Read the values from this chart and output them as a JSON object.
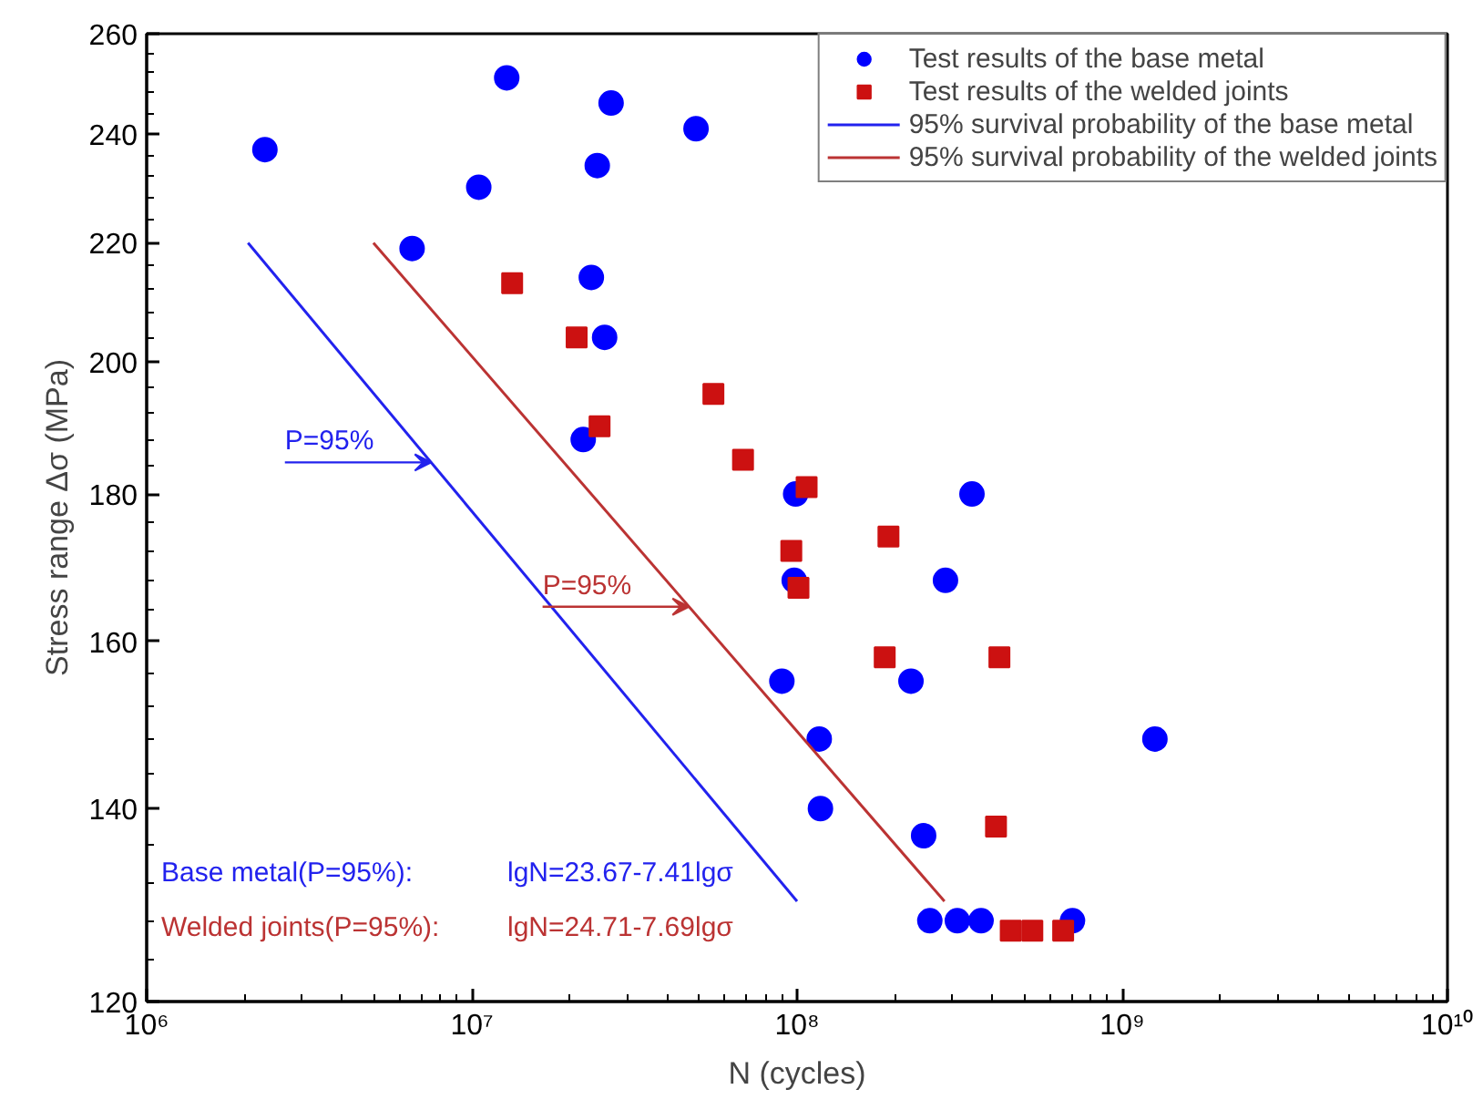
{
  "chart_data": {
    "type": "scatter",
    "xlabel": "N (cycles)",
    "ylabel": "Stress range Δσ (MPa)",
    "log": "xy",
    "grid": false,
    "legend": "top right",
    "xlim": [
      1000000,
      10000000000
    ],
    "ylim": [
      120,
      260
    ],
    "xticks": [
      {
        "value": 1000000,
        "label": "10⁶"
      },
      {
        "value": 10000000,
        "label": "10⁷"
      },
      {
        "value": 100000000,
        "label": "10⁸"
      },
      {
        "value": 1000000000,
        "label": "10⁹"
      },
      {
        "value": 10000000000,
        "label": "10¹⁰"
      }
    ],
    "yticks": [
      120,
      140,
      160,
      180,
      200,
      220,
      240,
      260
    ],
    "series": [
      {
        "name": "Test results of the base metal",
        "marker": "circle",
        "color": "#0000ff",
        "x": [
          2310000,
          12800000,
          26800000,
          48900000,
          24300000,
          10500000,
          6550000,
          23300000,
          25600000,
          22000000,
          99000000,
          345000000,
          98000000,
          286000000,
          89800000,
          224000000,
          117000000,
          1260000000,
          118000000,
          245000000,
          256000000,
          311000000,
          368000000,
          703000000
        ],
        "values": [
          237,
          251,
          246,
          241,
          234,
          230,
          219,
          214,
          204,
          188,
          180,
          180,
          168,
          168,
          155,
          155,
          148,
          148,
          140,
          137,
          128,
          128,
          128,
          128
        ]
      },
      {
        "name": "Test results of the welded joints",
        "marker": "square",
        "color": "#cc1111",
        "x": [
          13300000,
          21000000,
          24700000,
          55300000,
          68200000,
          107000000,
          96000000,
          101000000,
          191000000,
          186000000,
          419000000,
          409000000,
          454000000,
          529000000,
          658000000
        ],
        "values": [
          213,
          204,
          190,
          195,
          185,
          181,
          172,
          167,
          174,
          158,
          158,
          138,
          127,
          127,
          127
        ]
      },
      {
        "name": "95% survival probability of the base metal",
        "type": "line",
        "line_style": "solid",
        "color": "#2222ee",
        "x": [
          2050000,
          100000000
        ],
        "values": [
          220,
          130
        ]
      },
      {
        "name": "95% survival probability of the welded joints",
        "type": "line",
        "line_style": "solid",
        "color": "#bb3333",
        "x": [
          4980000,
          284000000
        ],
        "values": [
          220,
          130
        ]
      }
    ],
    "annotations": [
      {
        "text": "P=95%",
        "x": 7500000,
        "y": 184.6
      },
      {
        "text": "P=95%",
        "x": 46500000,
        "y": 164.5
      },
      "Base metal(P=95%):",
      "Welded joints(P=95%):",
      "lgN=23.67-7.41lgσ",
      "lgN=24.71-7.69lgσ"
    ]
  }
}
